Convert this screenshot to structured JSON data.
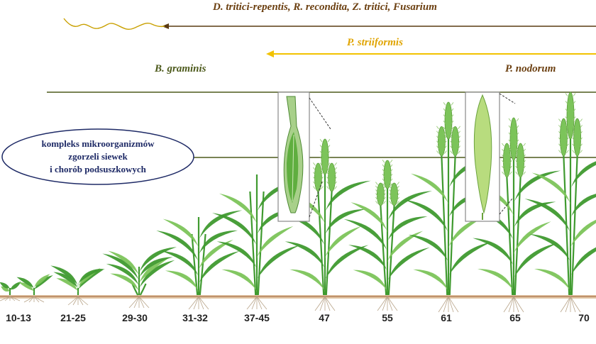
{
  "pathogens": {
    "dtritici": "D. tritici-repentis, R. recondita, Z. tritici, Fusarium",
    "striiformis": "P. striiformis",
    "bgraminis": "B. graminis",
    "nodorum": "P. nodorum"
  },
  "complex": {
    "line1": "kompleks mikroorganizmów",
    "line2": "zgorzeli siewek",
    "line3": "i chorób podsuszkowych"
  },
  "stages": [
    "10-13",
    "21-25",
    "29-30",
    "31-32",
    "37-45",
    "47",
    "55",
    "61",
    "65",
    "70"
  ],
  "colors": {
    "brown_line": "#5a3a12",
    "yellow_line": "#f2c200",
    "green_line": "#4d5a1c",
    "navy": "#1e2a66",
    "plant_dark": "#3f9a2f",
    "plant_light": "#7cc45a",
    "soil": "#c9a17a"
  }
}
